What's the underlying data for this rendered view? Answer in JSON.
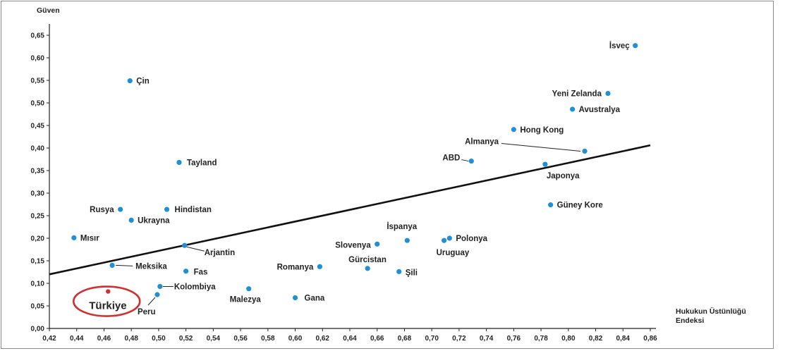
{
  "chart_data": {
    "type": "scatter",
    "ylabel": "Güven",
    "xlabel": "Hukukun Üstünlüğü Endeksi",
    "xlim": [
      0.42,
      0.86
    ],
    "ylim": [
      0.0,
      0.65
    ],
    "x_ticks": [
      "0,42",
      "0,44",
      "0,46",
      "0,48",
      "0,50",
      "0,52",
      "0,54",
      "0,56",
      "0,58",
      "0,60",
      "0,62",
      "0,64",
      "0,66",
      "0,68",
      "0,70",
      "0,72",
      "0,74",
      "0,76",
      "0,78",
      "0,80",
      "0,82",
      "0,84",
      "0,86"
    ],
    "y_ticks": [
      "0,00",
      "0,05",
      "0,10",
      "0,15",
      "0,20",
      "0,25",
      "0,30",
      "0,35",
      "0,40",
      "0,45",
      "0,50",
      "0,55",
      "0,60",
      "0,65"
    ],
    "grid": false,
    "trendline": {
      "x": [
        0.42,
        0.86
      ],
      "y": [
        0.12,
        0.406
      ]
    },
    "colors": {
      "point": "#1f8fd6",
      "highlight": "#d32f2f",
      "line": "#111111"
    },
    "points": [
      {
        "name": "İsveç",
        "x": 0.849,
        "y": 0.627
      },
      {
        "name": "Yeni Zelanda",
        "x": 0.829,
        "y": 0.521
      },
      {
        "name": "Avustralya",
        "x": 0.803,
        "y": 0.486
      },
      {
        "name": "Hong Kong",
        "x": 0.76,
        "y": 0.441
      },
      {
        "name": "Almanya",
        "x": 0.812,
        "y": 0.393
      },
      {
        "name": "ABD",
        "x": 0.729,
        "y": 0.371
      },
      {
        "name": "Japonya",
        "x": 0.783,
        "y": 0.364
      },
      {
        "name": "Güney Kore",
        "x": 0.787,
        "y": 0.274
      },
      {
        "name": "Çin",
        "x": 0.479,
        "y": 0.549
      },
      {
        "name": "Tayland",
        "x": 0.515,
        "y": 0.368
      },
      {
        "name": "Rusya",
        "x": 0.472,
        "y": 0.264
      },
      {
        "name": "Hindistan",
        "x": 0.506,
        "y": 0.264
      },
      {
        "name": "Ukrayna",
        "x": 0.48,
        "y": 0.24
      },
      {
        "name": "Mısır",
        "x": 0.438,
        "y": 0.201
      },
      {
        "name": "Arjantin",
        "x": 0.519,
        "y": 0.184
      },
      {
        "name": "Meksika",
        "x": 0.466,
        "y": 0.14
      },
      {
        "name": "Fas",
        "x": 0.52,
        "y": 0.127
      },
      {
        "name": "Kolombiya",
        "x": 0.501,
        "y": 0.093
      },
      {
        "name": "Peru",
        "x": 0.499,
        "y": 0.075
      },
      {
        "name": "Türkiye",
        "x": 0.463,
        "y": 0.082,
        "highlight": true
      },
      {
        "name": "Malezya",
        "x": 0.566,
        "y": 0.088
      },
      {
        "name": "Gana",
        "x": 0.6,
        "y": 0.068
      },
      {
        "name": "Romanya",
        "x": 0.618,
        "y": 0.137
      },
      {
        "name": "Gürcistan",
        "x": 0.653,
        "y": 0.133
      },
      {
        "name": "Slovenya",
        "x": 0.66,
        "y": 0.187
      },
      {
        "name": "İspanya",
        "x": 0.682,
        "y": 0.195
      },
      {
        "name": "Şili",
        "x": 0.676,
        "y": 0.126
      },
      {
        "name": "Uruguay",
        "x": 0.709,
        "y": 0.195
      },
      {
        "name": "Polonya",
        "x": 0.713,
        "y": 0.2
      }
    ]
  }
}
